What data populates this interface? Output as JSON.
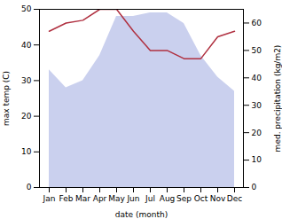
{
  "chart_data": {
    "type": "line",
    "categories": [
      "Jan",
      "Feb",
      "Mar",
      "Apr",
      "May",
      "Jun",
      "Jul",
      "Aug",
      "Sep",
      "Oct",
      "Nov",
      "Dec"
    ],
    "xlabel": "date (month)",
    "ylabel": "max temp (C)",
    "y2label": "med. precipitation (kg/m2)",
    "ylim": [
      0,
      50
    ],
    "yticks": [
      0,
      10,
      20,
      30,
      40,
      50
    ],
    "y2lim": [
      0,
      65
    ],
    "y2ticks": [
      0,
      10,
      20,
      30,
      40,
      50,
      60
    ],
    "grid": false,
    "series": [
      {
        "type": "area",
        "color": "#b8c0e8",
        "values": [
          33,
          28,
          30,
          37,
          48,
          48,
          49,
          49,
          46,
          37,
          31,
          27
        ]
      },
      {
        "type": "line",
        "color": "#b03040",
        "axis": "y2",
        "values": [
          57,
          60,
          61,
          65,
          65,
          57,
          50,
          50,
          47,
          47,
          55,
          57
        ]
      }
    ]
  }
}
